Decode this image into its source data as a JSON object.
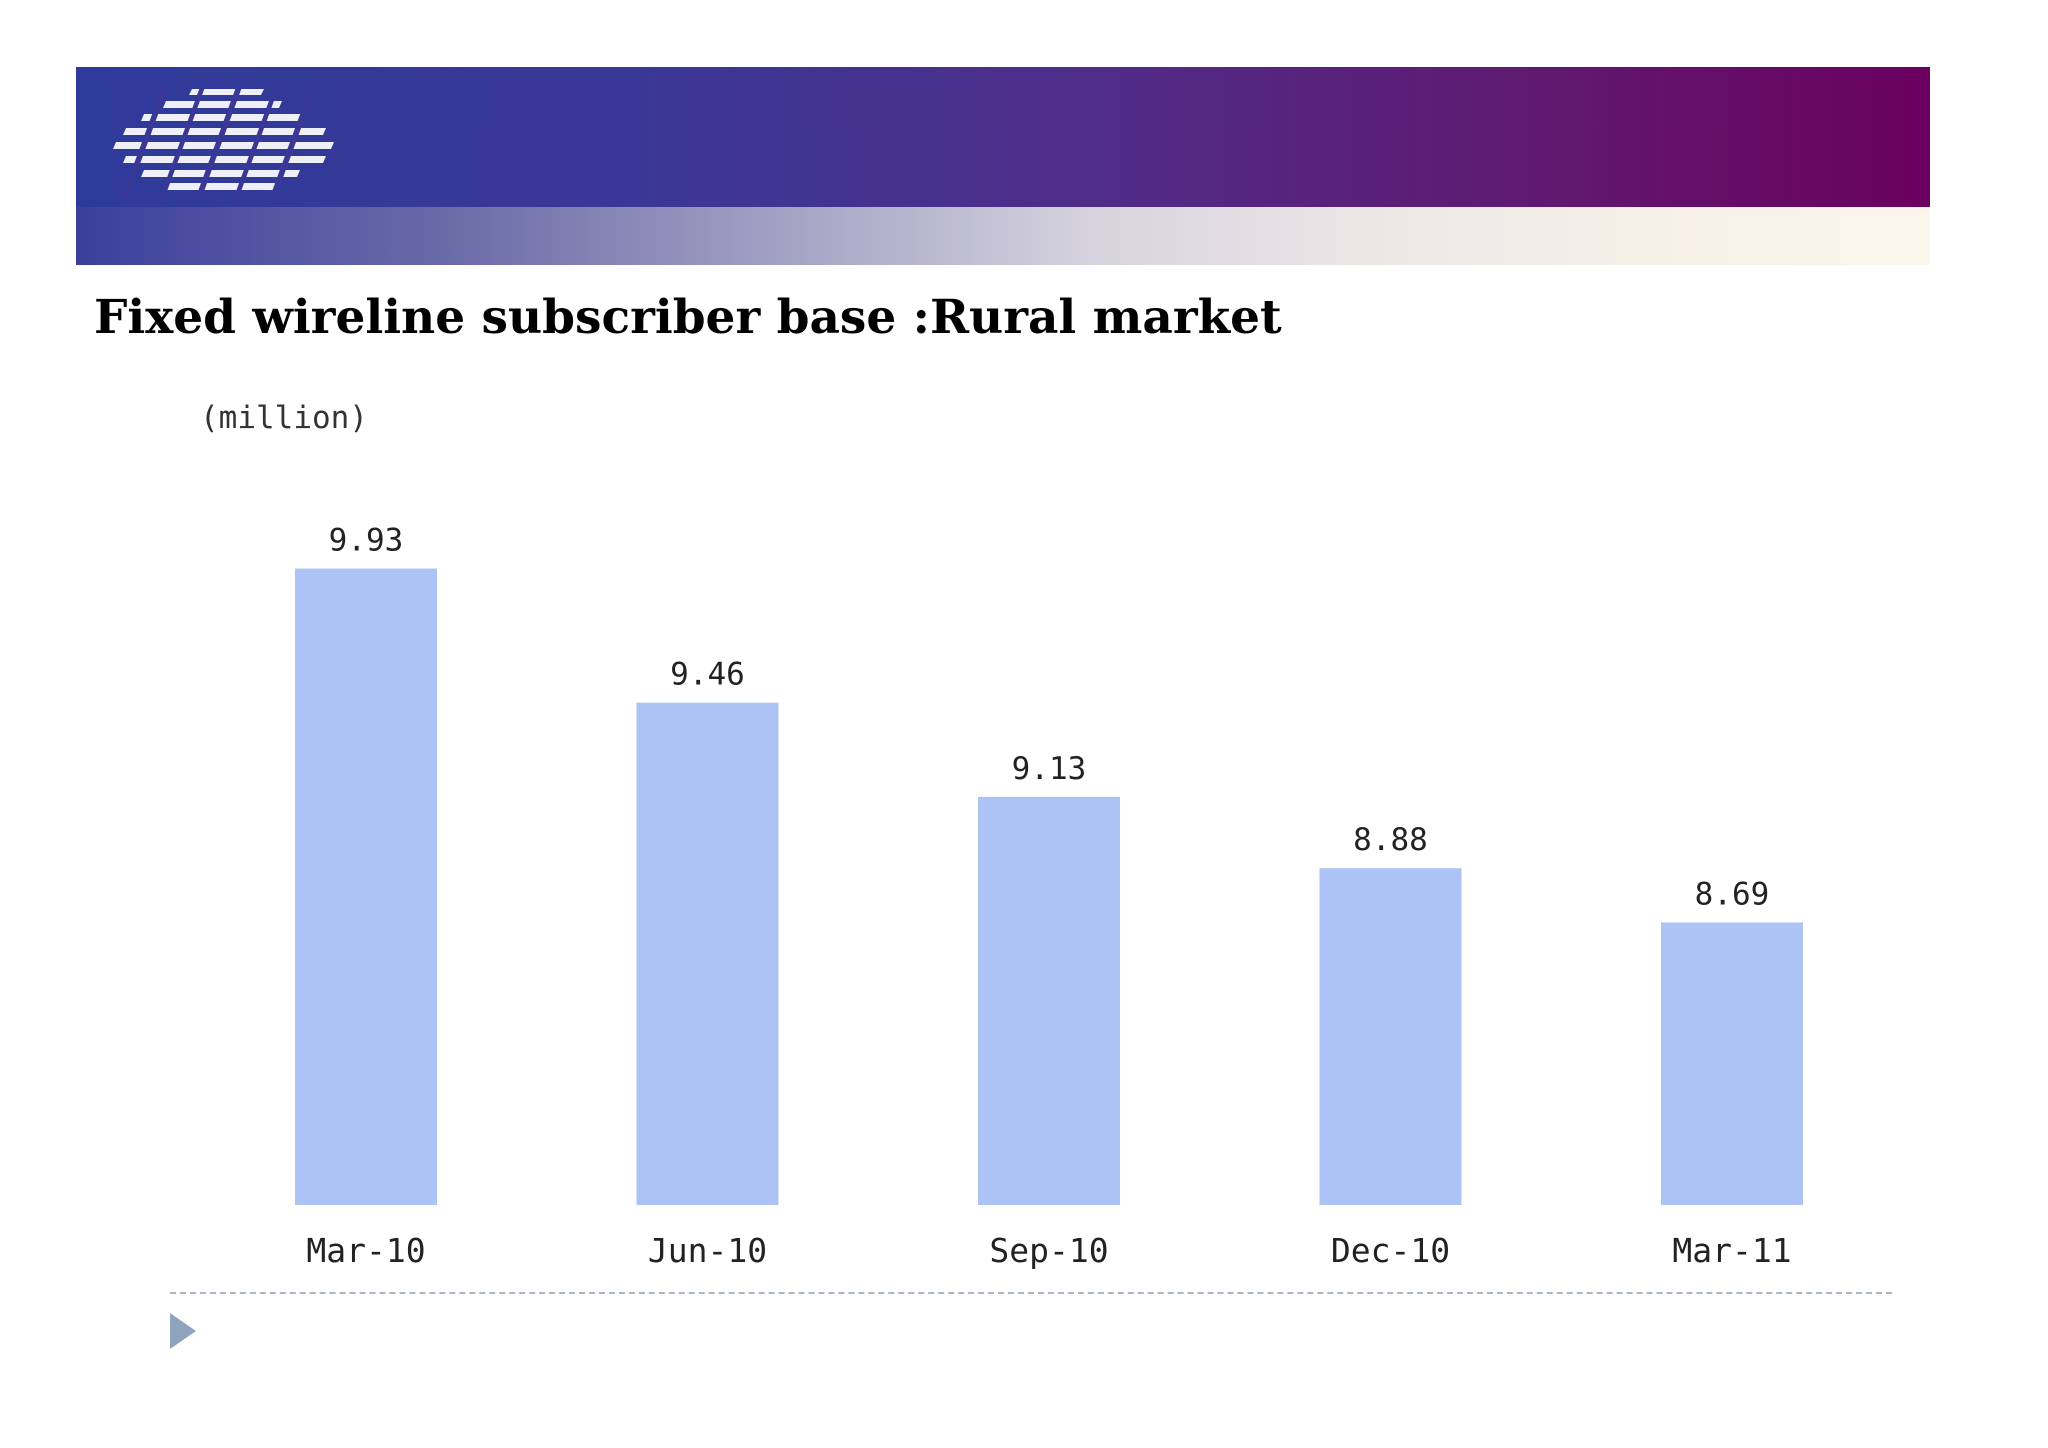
{
  "slide": {
    "title": "Fixed wireline subscriber base :Rural market",
    "logo_icon": "striped-logo-icon"
  },
  "colors": {
    "bar_fill": "#aec3f5",
    "header_left": "#2e3a9a",
    "header_right": "#6a0060",
    "bullet": "#8fa3bd"
  },
  "chart_data": {
    "type": "bar",
    "title": "",
    "unit_label": "(million)",
    "xlabel": "",
    "ylabel": "",
    "categories": [
      "Mar-10",
      "Jun-10",
      "Sep-10",
      "Dec-10",
      "Mar-11"
    ],
    "values": [
      9.93,
      9.46,
      9.13,
      8.88,
      8.69
    ],
    "value_labels": [
      "9.93",
      "9.46",
      "9.13",
      "8.88",
      "8.69"
    ],
    "ylim": [
      7.7,
      10.1
    ],
    "grid": false,
    "legend": "none"
  }
}
